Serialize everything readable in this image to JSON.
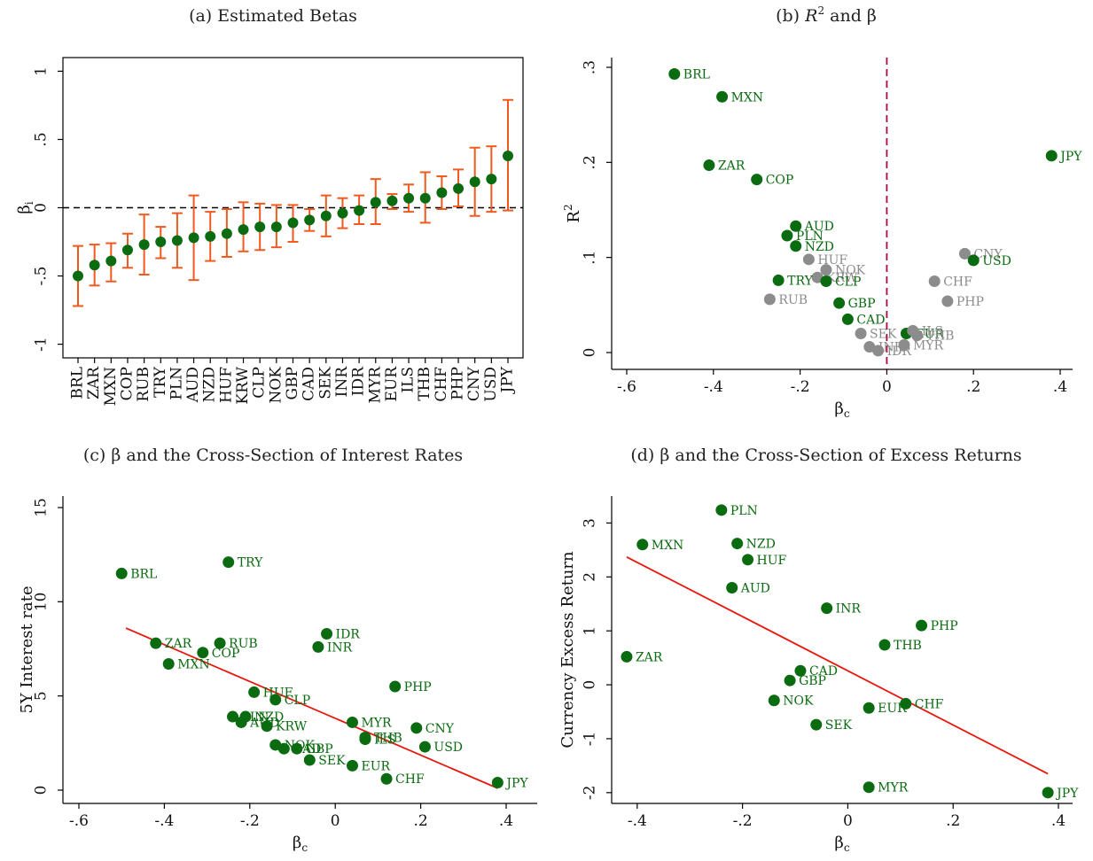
{
  "chart_data": [
    {
      "type": "scatter",
      "title": "(a) Estimated Betas",
      "xlabel": "",
      "ylabel": "βi",
      "ylim": [
        -1.1,
        1.1
      ],
      "yticks": [
        -1,
        -0.5,
        0,
        0.5,
        1
      ],
      "yticklabels": [
        "-1",
        "-.5",
        "0",
        ".5",
        "1"
      ],
      "reference_line": {
        "y": 0,
        "style": "dashed",
        "color": "#000000"
      },
      "point_color": "#0b6b10",
      "errorbar_color": "#f05a1e",
      "categories": [
        "BRL",
        "ZAR",
        "MXN",
        "COP",
        "RUB",
        "TRY",
        "PLN",
        "AUD",
        "NZD",
        "HUF",
        "KRW",
        "CLP",
        "NOK",
        "GBP",
        "CAD",
        "SEK",
        "INR",
        "IDR",
        "MYR",
        "EUR",
        "ILS",
        "THB",
        "CHF",
        "PHP",
        "CNY",
        "USD",
        "JPY"
      ],
      "values": [
        -0.5,
        -0.42,
        -0.39,
        -0.31,
        -0.27,
        -0.25,
        -0.24,
        -0.22,
        -0.21,
        -0.19,
        -0.16,
        -0.14,
        -0.14,
        -0.11,
        -0.09,
        -0.06,
        -0.04,
        -0.02,
        0.04,
        0.05,
        0.07,
        0.07,
        0.11,
        0.14,
        0.19,
        0.21,
        0.38
      ],
      "ci_low": [
        -0.72,
        -0.57,
        -0.54,
        -0.44,
        -0.49,
        -0.37,
        -0.44,
        -0.53,
        -0.39,
        -0.36,
        -0.32,
        -0.31,
        -0.29,
        -0.25,
        -0.17,
        -0.21,
        -0.15,
        -0.12,
        -0.12,
        -0.01,
        -0.03,
        -0.11,
        -0.01,
        0.01,
        -0.06,
        -0.03,
        -0.02
      ],
      "ci_high": [
        -0.28,
        -0.27,
        -0.26,
        -0.19,
        -0.05,
        -0.14,
        -0.04,
        0.09,
        -0.03,
        -0.01,
        0.04,
        0.03,
        0.02,
        0.02,
        -0.01,
        0.09,
        0.07,
        0.09,
        0.21,
        0.1,
        0.17,
        0.26,
        0.23,
        0.28,
        0.44,
        0.45,
        0.79
      ]
    },
    {
      "type": "scatter",
      "title_prefix": "(b) ",
      "title_r": "R",
      "title_sup": "2",
      "title_suffix": " and β",
      "xlabel": "βc",
      "ylabel": "R2",
      "xlim": [
        -0.6,
        0.4
      ],
      "ylim": [
        0,
        0.3
      ],
      "xticks": [
        -0.6,
        -0.4,
        -0.2,
        0,
        0.2,
        0.4
      ],
      "xticklabels": [
        "-.6",
        "-.4",
        "-.2",
        "0",
        ".2",
        ".4"
      ],
      "yticks": [
        0,
        0.1,
        0.2,
        0.3
      ],
      "yticklabels": [
        "0",
        ".1",
        ".2",
        ".3"
      ],
      "reference_line": {
        "x": 0,
        "style": "dashed",
        "color": "#b00a3c"
      },
      "colors": {
        "significant": "#0b6b10",
        "insignificant": "#8c8c8c"
      },
      "points": [
        {
          "label": "BRL",
          "x": -0.49,
          "y": 0.293,
          "group": "significant"
        },
        {
          "label": "MXN",
          "x": -0.38,
          "y": 0.269,
          "group": "significant"
        },
        {
          "label": "ZAR",
          "x": -0.41,
          "y": 0.197,
          "group": "significant"
        },
        {
          "label": "COP",
          "x": -0.3,
          "y": 0.182,
          "group": "significant"
        },
        {
          "label": "JPY",
          "x": 0.38,
          "y": 0.207,
          "group": "significant"
        },
        {
          "label": "AUD",
          "x": -0.21,
          "y": 0.133,
          "group": "significant"
        },
        {
          "label": "PLN",
          "x": -0.23,
          "y": 0.123,
          "group": "significant"
        },
        {
          "label": "NZD",
          "x": -0.21,
          "y": 0.112,
          "group": "significant"
        },
        {
          "label": "HUF",
          "x": -0.18,
          "y": 0.098,
          "group": "insignificant"
        },
        {
          "label": "NOK",
          "x": -0.14,
          "y": 0.087,
          "group": "insignificant"
        },
        {
          "label": "KRW",
          "x": -0.16,
          "y": 0.079,
          "group": "insignificant"
        },
        {
          "label": "TRY",
          "x": -0.25,
          "y": 0.076,
          "group": "significant"
        },
        {
          "label": "CLP",
          "x": -0.14,
          "y": 0.075,
          "group": "significant"
        },
        {
          "label": "RUB",
          "x": -0.27,
          "y": 0.056,
          "group": "insignificant"
        },
        {
          "label": "GBP",
          "x": -0.11,
          "y": 0.052,
          "group": "significant"
        },
        {
          "label": "CAD",
          "x": -0.09,
          "y": 0.035,
          "group": "significant"
        },
        {
          "label": "SEK",
          "x": -0.06,
          "y": 0.02,
          "group": "insignificant"
        },
        {
          "label": "INR",
          "x": -0.04,
          "y": 0.006,
          "group": "insignificant"
        },
        {
          "label": "IDR",
          "x": -0.02,
          "y": 0.002,
          "group": "insignificant"
        },
        {
          "label": "EUR",
          "x": 0.045,
          "y": 0.02,
          "group": "significant"
        },
        {
          "label": "ILS",
          "x": 0.06,
          "y": 0.023,
          "group": "insignificant"
        },
        {
          "label": "THB",
          "x": 0.07,
          "y": 0.018,
          "group": "insignificant"
        },
        {
          "label": "MYR",
          "x": 0.04,
          "y": 0.008,
          "group": "insignificant"
        },
        {
          "label": "CNY",
          "x": 0.18,
          "y": 0.104,
          "group": "insignificant"
        },
        {
          "label": "USD",
          "x": 0.2,
          "y": 0.097,
          "group": "significant"
        },
        {
          "label": "CHF",
          "x": 0.11,
          "y": 0.075,
          "group": "insignificant"
        },
        {
          "label": "PHP",
          "x": 0.14,
          "y": 0.054,
          "group": "insignificant"
        }
      ]
    },
    {
      "type": "scatter",
      "title": "(c) β and the Cross-Section of Interest Rates",
      "xlabel": "βc",
      "ylabel": "5Y Interest rate",
      "xlim": [
        -0.6,
        0.4
      ],
      "ylim": [
        0,
        15
      ],
      "xticks": [
        -0.6,
        -0.4,
        -0.2,
        0,
        0.2,
        0.4
      ],
      "xticklabels": [
        "-.6",
        "-.4",
        "-.2",
        "0",
        ".2",
        ".4"
      ],
      "yticks": [
        0,
        5,
        10,
        15
      ],
      "yticklabels": [
        "0",
        "5",
        "10",
        "15"
      ],
      "point_color": "#0b6b10",
      "fit_line": {
        "x": [
          -0.49,
          0.38
        ],
        "y": [
          8.6,
          0.1
        ],
        "color": "#e8160c"
      },
      "points": [
        {
          "label": "BRL",
          "x": -0.5,
          "y": 11.5
        },
        {
          "label": "TRY",
          "x": -0.25,
          "y": 12.1
        },
        {
          "label": "ZAR",
          "x": -0.42,
          "y": 7.8
        },
        {
          "label": "RUB",
          "x": -0.27,
          "y": 7.8
        },
        {
          "label": "COP",
          "x": -0.31,
          "y": 7.3
        },
        {
          "label": "MXN",
          "x": -0.39,
          "y": 6.7
        },
        {
          "label": "IDR",
          "x": -0.02,
          "y": 8.3
        },
        {
          "label": "INR",
          "x": -0.04,
          "y": 7.6
        },
        {
          "label": "PHP",
          "x": 0.14,
          "y": 5.5
        },
        {
          "label": "HUF",
          "x": -0.19,
          "y": 5.2
        },
        {
          "label": "CLP",
          "x": -0.14,
          "y": 4.8
        },
        {
          "label": "PLN",
          "x": -0.24,
          "y": 3.9
        },
        {
          "label": "NZD",
          "x": -0.21,
          "y": 3.9
        },
        {
          "label": "AUD",
          "x": -0.22,
          "y": 3.6
        },
        {
          "label": "KRW",
          "x": -0.16,
          "y": 3.4
        },
        {
          "label": "MYR",
          "x": 0.04,
          "y": 3.6
        },
        {
          "label": "CNY",
          "x": 0.19,
          "y": 3.3
        },
        {
          "label": "THB",
          "x": 0.07,
          "y": 2.8
        },
        {
          "label": "ILS",
          "x": 0.07,
          "y": 2.7
        },
        {
          "label": "NOK",
          "x": -0.14,
          "y": 2.4
        },
        {
          "label": "CAD",
          "x": -0.12,
          "y": 2.2
        },
        {
          "label": "GBP",
          "x": -0.09,
          "y": 2.2
        },
        {
          "label": "USD",
          "x": 0.21,
          "y": 2.3
        },
        {
          "label": "SEK",
          "x": -0.06,
          "y": 1.6
        },
        {
          "label": "EUR",
          "x": 0.04,
          "y": 1.3
        },
        {
          "label": "CHF",
          "x": 0.12,
          "y": 0.6
        },
        {
          "label": "JPY",
          "x": 0.38,
          "y": 0.4
        }
      ]
    },
    {
      "type": "scatter",
      "title": "(d) β and the Cross-Section of Excess Returns",
      "xlabel": "βc",
      "ylabel": "Currency Excess Return",
      "xlim": [
        -0.43,
        0.4
      ],
      "ylim": [
        -2.2,
        3.5
      ],
      "xticks": [
        -0.4,
        -0.2,
        0,
        0.2,
        0.4
      ],
      "xticklabels": [
        "-.4",
        "-.2",
        "0",
        ".2",
        ".4"
      ],
      "yticks": [
        -2,
        -1,
        0,
        1,
        2,
        3
      ],
      "yticklabels": [
        "-2",
        "-1",
        "0",
        "1",
        "2",
        "3"
      ],
      "point_color": "#0b6b10",
      "fit_line": {
        "x": [
          -0.42,
          0.38
        ],
        "y": [
          2.37,
          -1.65
        ],
        "color": "#e8160c"
      },
      "points": [
        {
          "label": "PLN",
          "x": -0.24,
          "y": 3.24
        },
        {
          "label": "MXN",
          "x": -0.39,
          "y": 2.6
        },
        {
          "label": "NZD",
          "x": -0.21,
          "y": 2.62
        },
        {
          "label": "HUF",
          "x": -0.19,
          "y": 2.32
        },
        {
          "label": "AUD",
          "x": -0.22,
          "y": 1.8
        },
        {
          "label": "INR",
          "x": -0.04,
          "y": 1.42
        },
        {
          "label": "PHP",
          "x": 0.14,
          "y": 1.1
        },
        {
          "label": "THB",
          "x": 0.07,
          "y": 0.74
        },
        {
          "label": "ZAR",
          "x": -0.42,
          "y": 0.52
        },
        {
          "label": "CAD",
          "x": -0.09,
          "y": 0.26
        },
        {
          "label": "GBP",
          "x": -0.11,
          "y": 0.08
        },
        {
          "label": "NOK",
          "x": -0.14,
          "y": -0.29
        },
        {
          "label": "EUR",
          "x": 0.04,
          "y": -0.43
        },
        {
          "label": "CHF",
          "x": 0.11,
          "y": -0.35
        },
        {
          "label": "SEK",
          "x": -0.06,
          "y": -0.74
        },
        {
          "label": "MYR",
          "x": 0.04,
          "y": -1.9
        },
        {
          "label": "JPY",
          "x": 0.38,
          "y": -2.0
        }
      ]
    }
  ]
}
